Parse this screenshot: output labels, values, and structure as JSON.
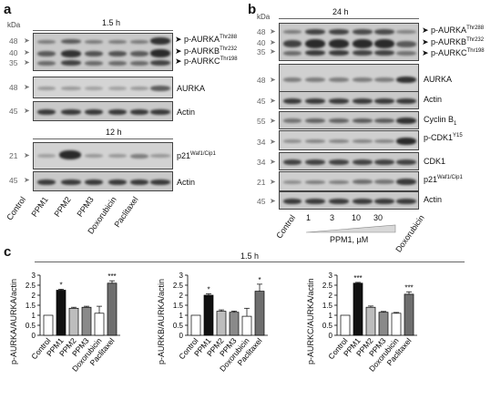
{
  "panels": {
    "a": "a",
    "b": "b",
    "c": "c"
  },
  "panel_a": {
    "time_top": "1.5 h",
    "time_bottom": "12 h",
    "kda": "kDa",
    "mw_top": [
      "48",
      "40",
      "35"
    ],
    "mw_aurka": "48",
    "mw_actin": "45",
    "mw_p21": "21",
    "labels": {
      "p_aurka": "p-AURKA",
      "p_aurka_sup": "Thr288",
      "p_aurkb": "p-AURKB",
      "p_aurkb_sup": "Thr232",
      "p_aurkc": "p-AURKC",
      "p_aurkc_sup": "Thr198",
      "aurka": "AURKA",
      "actin": "Actin",
      "p21": "p21",
      "p21_sup": "Waf1/Cip1"
    },
    "lanes": [
      "Control",
      "PPM1",
      "PPM2",
      "PPM3",
      "Doxorubicin",
      "Paclitaxel"
    ]
  },
  "panel_b": {
    "time": "24 h",
    "kda": "kDa",
    "mw_top": [
      "48",
      "40",
      "35"
    ],
    "mw_aurka": "48",
    "mw_actin1": "45",
    "mw_cyclin": "55",
    "mw_pcdk1": "34",
    "mw_cdk1": "34",
    "mw_p21": "21",
    "mw_actin2": "45",
    "labels": {
      "p_aurka": "p-AURKA",
      "p_aurka_sup": "Thr288",
      "p_aurkb": "p-AURKB",
      "p_aurkb_sup": "Thr232",
      "p_aurkc": "p-AURKC",
      "p_aurkc_sup": "Thr198",
      "aurka": "AURKA",
      "actin": "Actin",
      "cyclin": "Cyclin B",
      "cyclin_sub": "1",
      "pcdk1": "p-CDK1",
      "pcdk1_sup": "Y15",
      "cdk1": "CDK1",
      "p21": "p21",
      "p21_sup": "Waf1/Cip1"
    },
    "lanes": [
      "Control",
      "1",
      "3",
      "10",
      "30",
      "Doxorubicin"
    ],
    "gradient_label": "PPM1, µM"
  },
  "panel_c": {
    "time": "1.5 h",
    "categories": [
      "Control",
      "PPM1",
      "PPM2",
      "PPM3",
      "Doxorubicin",
      "Paclitaxel"
    ],
    "ticks": [
      "0",
      "0.5",
      "1",
      "1.5",
      "2",
      "2.5",
      "3"
    ]
  },
  "chart_data": [
    {
      "type": "bar",
      "ylabel": "p-AURKA/AURKA/actin",
      "categories": [
        "Control",
        "PPM1",
        "PPM2",
        "PPM3",
        "Doxorubicin",
        "Paclitaxel"
      ],
      "values": [
        1.0,
        2.25,
        1.35,
        1.4,
        1.1,
        2.6
      ],
      "errors": [
        0,
        0.05,
        0.05,
        0.05,
        0.35,
        0.12
      ],
      "significance": [
        "",
        "*",
        "",
        "",
        "",
        "***"
      ],
      "ylim": [
        0,
        3
      ],
      "colors": [
        "#ffffff",
        "#111111",
        "#bdbdbd",
        "#8a8a8a",
        "#ffffff",
        "#6e6e6e"
      ]
    },
    {
      "type": "bar",
      "ylabel": "p-AURKB/AURKA/actin",
      "categories": [
        "Control",
        "PPM1",
        "PPM2",
        "PPM3",
        "Doxorubicin",
        "Paclitaxel"
      ],
      "values": [
        1.0,
        2.0,
        1.2,
        1.15,
        0.95,
        2.2
      ],
      "errors": [
        0,
        0.07,
        0.07,
        0.06,
        0.4,
        0.35
      ],
      "significance": [
        "",
        "*",
        "",
        "",
        "",
        "*"
      ],
      "ylim": [
        0,
        3
      ],
      "colors": [
        "#ffffff",
        "#111111",
        "#bdbdbd",
        "#8a8a8a",
        "#ffffff",
        "#6e6e6e"
      ]
    },
    {
      "type": "bar",
      "ylabel": "p-AURKC/AURKA/actin",
      "categories": [
        "Control",
        "PPM1",
        "PPM2",
        "PPM3",
        "Doxorubicin",
        "Paclitaxel"
      ],
      "values": [
        1.0,
        2.6,
        1.4,
        1.15,
        1.1,
        2.05
      ],
      "errors": [
        0,
        0.04,
        0.06,
        0.04,
        0.04,
        0.12
      ],
      "significance": [
        "",
        "***",
        "",
        "",
        "",
        "***"
      ],
      "ylim": [
        0,
        3
      ],
      "colors": [
        "#ffffff",
        "#111111",
        "#bdbdbd",
        "#8a8a8a",
        "#ffffff",
        "#6e6e6e"
      ]
    }
  ]
}
